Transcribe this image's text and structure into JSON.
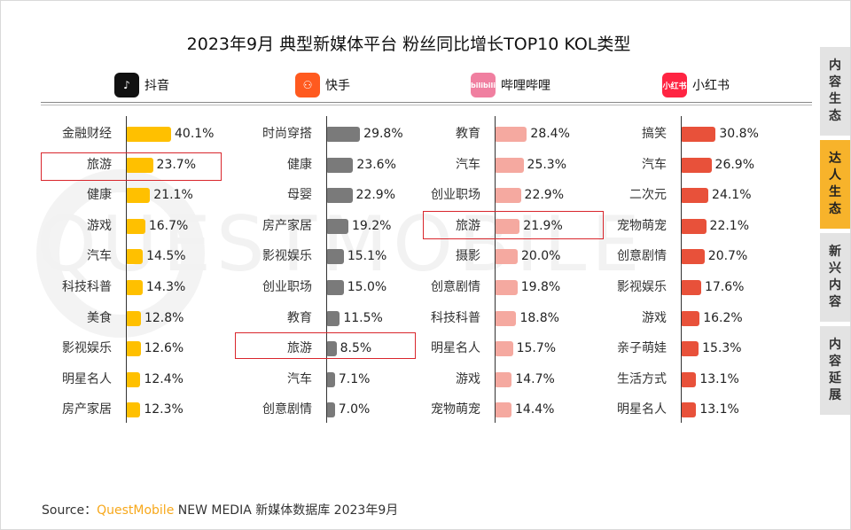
{
  "chart_data": {
    "type": "bar",
    "title": "2023年9月 典型新媒体平台 粉丝同比增长TOP10 KOL类型",
    "charts": [
      {
        "platform": "抖音",
        "icon": "douyin-logo",
        "color": "#FFC000",
        "categories": [
          "金融财经",
          "旅游",
          "健康",
          "游戏",
          "汽车",
          "科技科普",
          "美食",
          "影视娱乐",
          "明星名人",
          "房产家居"
        ],
        "values": [
          40.1,
          23.7,
          21.1,
          16.7,
          14.5,
          14.3,
          12.8,
          12.6,
          12.4,
          12.3
        ],
        "labels": [
          "40.1%",
          "23.7%",
          "21.1%",
          "16.7%",
          "14.5%",
          "14.3%",
          "12.8%",
          "12.6%",
          "12.4%",
          "12.3%"
        ],
        "highlight": "旅游"
      },
      {
        "platform": "快手",
        "icon": "kuaishou-logo",
        "color": "#7A7A7A",
        "categories": [
          "时尚穿搭",
          "健康",
          "母婴",
          "房产家居",
          "影视娱乐",
          "创业职场",
          "教育",
          "旅游",
          "汽车",
          "创意剧情"
        ],
        "values": [
          29.8,
          23.6,
          22.9,
          19.2,
          15.1,
          15.0,
          11.5,
          8.5,
          7.1,
          7.0
        ],
        "labels": [
          "29.8%",
          "23.6%",
          "22.9%",
          "19.2%",
          "15.1%",
          "15.0%",
          "11.5%",
          "8.5%",
          "7.1%",
          "7.0%"
        ],
        "highlight": "旅游"
      },
      {
        "platform": "哔哩哔哩",
        "icon": "bilibili-logo",
        "color": "#F5A9A0",
        "categories": [
          "教育",
          "汽车",
          "创业职场",
          "旅游",
          "摄影",
          "创意剧情",
          "科技科普",
          "明星名人",
          "游戏",
          "宠物萌宠"
        ],
        "values": [
          28.4,
          25.3,
          22.9,
          21.9,
          20.0,
          19.8,
          18.8,
          15.7,
          14.7,
          14.4
        ],
        "labels": [
          "28.4%",
          "25.3%",
          "22.9%",
          "21.9%",
          "20.0%",
          "19.8%",
          "18.8%",
          "15.7%",
          "14.7%",
          "14.4%"
        ],
        "highlight": "旅游"
      },
      {
        "platform": "小红书",
        "icon": "xiaohongshu-logo",
        "color": "#E8513A",
        "categories": [
          "搞笑",
          "汽车",
          "二次元",
          "宠物萌宠",
          "创意剧情",
          "影视娱乐",
          "游戏",
          "亲子萌娃",
          "生活方式",
          "明星名人"
        ],
        "values": [
          30.8,
          26.9,
          24.1,
          22.1,
          20.7,
          17.6,
          16.2,
          15.3,
          13.1,
          13.1
        ],
        "labels": [
          "30.8%",
          "26.9%",
          "24.1%",
          "22.1%",
          "20.7%",
          "17.6%",
          "16.2%",
          "15.3%",
          "13.1%",
          "13.1%"
        ],
        "highlight": null
      }
    ],
    "xlim": [
      0,
      40.1
    ]
  },
  "platform_icons": {
    "douyin": "♪",
    "kuaishou": "⚇",
    "bilibili": "bilibili",
    "xiaohongshu": "小红书"
  },
  "watermark": "QUESTMOBILE",
  "side_tabs": [
    {
      "label": "内容生态",
      "active": false
    },
    {
      "label": "达人生态",
      "active": true
    },
    {
      "label": "新兴内容",
      "active": false
    },
    {
      "label": "内容延展",
      "active": false
    }
  ],
  "source": {
    "prefix": "Source：",
    "brand": "QuestMobile",
    "suffix": " NEW MEDIA 新媒体数据库 2023年9月"
  }
}
